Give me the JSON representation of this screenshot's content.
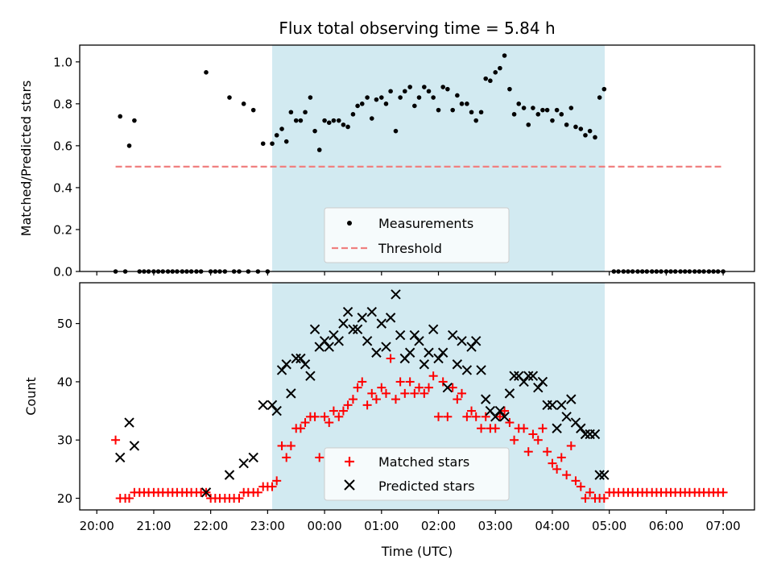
{
  "chart_data": {
    "title": "Flux total observing time = 5.84 h",
    "colors": {
      "shade": "#add8e6",
      "measure": "#000000",
      "threshold": "#f08080",
      "matched": "#ff0000",
      "predicted": "#000000"
    },
    "shade_range_h": [
      23.08,
      28.92
    ],
    "x_axis": {
      "label": "Time (UTC)",
      "range_h": [
        19.7,
        31.55
      ],
      "ticks": [
        {
          "h": 20,
          "label": "20:00"
        },
        {
          "h": 21,
          "label": "21:00"
        },
        {
          "h": 22,
          "label": "22:00"
        },
        {
          "h": 23,
          "label": "23:00"
        },
        {
          "h": 24,
          "label": "00:00"
        },
        {
          "h": 25,
          "label": "01:00"
        },
        {
          "h": 26,
          "label": "02:00"
        },
        {
          "h": 27,
          "label": "03:00"
        },
        {
          "h": 28,
          "label": "04:00"
        },
        {
          "h": 29,
          "label": "05:00"
        },
        {
          "h": 30,
          "label": "06:00"
        },
        {
          "h": 31,
          "label": "07:00"
        }
      ]
    },
    "ratio_panel": {
      "type": "scatter",
      "ylabel": "Matched/Predicted stars",
      "ylim": [
        0,
        1.08
      ],
      "yticks": [
        {
          "v": 0.0,
          "label": "0.0"
        },
        {
          "v": 0.2,
          "label": "0.2"
        },
        {
          "v": 0.4,
          "label": "0.4"
        },
        {
          "v": 0.6,
          "label": "0.6"
        },
        {
          "v": 0.8,
          "label": "0.8"
        },
        {
          "v": 1.0,
          "label": "1.0"
        }
      ],
      "threshold": {
        "value": 0.5,
        "x_range_h": [
          20.33,
          31.0
        ]
      },
      "legend": {
        "measurements": "Measurements",
        "threshold": "Threshold"
      },
      "measurements": [
        [
          20.33,
          0
        ],
        [
          20.41,
          0.74
        ],
        [
          20.5,
          0
        ],
        [
          20.57,
          0.6
        ],
        [
          20.66,
          0.72
        ],
        [
          20.75,
          0
        ],
        [
          20.83,
          0
        ],
        [
          20.91,
          0
        ],
        [
          21.0,
          0
        ],
        [
          21.08,
          0
        ],
        [
          21.16,
          0
        ],
        [
          21.25,
          0
        ],
        [
          21.33,
          0
        ],
        [
          21.41,
          0
        ],
        [
          21.5,
          0
        ],
        [
          21.58,
          0
        ],
        [
          21.66,
          0
        ],
        [
          21.75,
          0
        ],
        [
          21.83,
          0
        ],
        [
          21.92,
          0.95
        ],
        [
          22.0,
          0
        ],
        [
          22.08,
          0
        ],
        [
          22.16,
          0
        ],
        [
          22.25,
          0
        ],
        [
          22.33,
          0.83
        ],
        [
          22.41,
          0
        ],
        [
          22.5,
          0
        ],
        [
          22.58,
          0.8
        ],
        [
          22.66,
          0
        ],
        [
          22.75,
          0.77
        ],
        [
          22.83,
          0
        ],
        [
          22.92,
          0.61
        ],
        [
          23.0,
          0
        ],
        [
          23.08,
          0.61
        ],
        [
          23.16,
          0.65
        ],
        [
          23.25,
          0.68
        ],
        [
          23.33,
          0.62
        ],
        [
          23.41,
          0.76
        ],
        [
          23.5,
          0.72
        ],
        [
          23.58,
          0.72
        ],
        [
          23.66,
          0.76
        ],
        [
          23.75,
          0.83
        ],
        [
          23.83,
          0.67
        ],
        [
          23.91,
          0.58
        ],
        [
          24.0,
          0.72
        ],
        [
          24.08,
          0.71
        ],
        [
          24.16,
          0.72
        ],
        [
          24.25,
          0.72
        ],
        [
          24.33,
          0.7
        ],
        [
          24.41,
          0.69
        ],
        [
          24.5,
          0.75
        ],
        [
          24.58,
          0.79
        ],
        [
          24.66,
          0.8
        ],
        [
          24.75,
          0.83
        ],
        [
          24.83,
          0.73
        ],
        [
          24.91,
          0.82
        ],
        [
          25.0,
          0.83
        ],
        [
          25.08,
          0.8
        ],
        [
          25.16,
          0.86
        ],
        [
          25.25,
          0.67
        ],
        [
          25.33,
          0.83
        ],
        [
          25.41,
          0.86
        ],
        [
          25.5,
          0.88
        ],
        [
          25.58,
          0.79
        ],
        [
          25.66,
          0.83
        ],
        [
          25.75,
          0.88
        ],
        [
          25.83,
          0.86
        ],
        [
          25.91,
          0.83
        ],
        [
          26.0,
          0.77
        ],
        [
          26.08,
          0.88
        ],
        [
          26.16,
          0.87
        ],
        [
          26.25,
          0.77
        ],
        [
          26.33,
          0.84
        ],
        [
          26.41,
          0.8
        ],
        [
          26.5,
          0.8
        ],
        [
          26.58,
          0.76
        ],
        [
          26.66,
          0.72
        ],
        [
          26.75,
          0.76
        ],
        [
          26.83,
          0.92
        ],
        [
          26.91,
          0.91
        ],
        [
          27.0,
          0.95
        ],
        [
          27.08,
          0.97
        ],
        [
          27.16,
          1.03
        ],
        [
          27.25,
          0.87
        ],
        [
          27.33,
          0.75
        ],
        [
          27.41,
          0.8
        ],
        [
          27.5,
          0.78
        ],
        [
          27.58,
          0.7
        ],
        [
          27.66,
          0.78
        ],
        [
          27.75,
          0.75
        ],
        [
          27.83,
          0.77
        ],
        [
          27.91,
          0.77
        ],
        [
          28.0,
          0.72
        ],
        [
          28.08,
          0.77
        ],
        [
          28.16,
          0.75
        ],
        [
          28.25,
          0.7
        ],
        [
          28.33,
          0.78
        ],
        [
          28.41,
          0.69
        ],
        [
          28.5,
          0.68
        ],
        [
          28.58,
          0.65
        ],
        [
          28.66,
          0.67
        ],
        [
          28.75,
          0.64
        ],
        [
          28.83,
          0.83
        ],
        [
          28.91,
          0.87
        ],
        [
          29.08,
          0
        ],
        [
          29.16,
          0
        ],
        [
          29.25,
          0
        ],
        [
          29.33,
          0
        ],
        [
          29.41,
          0
        ],
        [
          29.5,
          0
        ],
        [
          29.58,
          0
        ],
        [
          29.66,
          0
        ],
        [
          29.75,
          0
        ],
        [
          29.83,
          0
        ],
        [
          29.91,
          0
        ],
        [
          30.0,
          0
        ],
        [
          30.08,
          0
        ],
        [
          30.16,
          0
        ],
        [
          30.25,
          0
        ],
        [
          30.33,
          0
        ],
        [
          30.41,
          0
        ],
        [
          30.5,
          0
        ],
        [
          30.58,
          0
        ],
        [
          30.66,
          0
        ],
        [
          30.75,
          0
        ],
        [
          30.83,
          0
        ],
        [
          30.91,
          0
        ],
        [
          31.0,
          0
        ]
      ]
    },
    "count_panel": {
      "type": "scatter",
      "ylabel": "Count",
      "ylim": [
        18,
        57
      ],
      "yticks": [
        {
          "v": 20,
          "label": "20"
        },
        {
          "v": 30,
          "label": "30"
        },
        {
          "v": 40,
          "label": "40"
        },
        {
          "v": 50,
          "label": "50"
        }
      ],
      "legend": {
        "matched": "Matched stars",
        "predicted": "Predicted stars"
      },
      "matched": [
        [
          20.33,
          30
        ],
        [
          20.41,
          20
        ],
        [
          20.5,
          20
        ],
        [
          20.57,
          20
        ],
        [
          20.66,
          21
        ],
        [
          20.75,
          21
        ],
        [
          20.83,
          21
        ],
        [
          20.91,
          21
        ],
        [
          21.0,
          21
        ],
        [
          21.08,
          21
        ],
        [
          21.16,
          21
        ],
        [
          21.25,
          21
        ],
        [
          21.33,
          21
        ],
        [
          21.41,
          21
        ],
        [
          21.5,
          21
        ],
        [
          21.58,
          21
        ],
        [
          21.66,
          21
        ],
        [
          21.75,
          21
        ],
        [
          21.83,
          21
        ],
        [
          21.92,
          21
        ],
        [
          22.0,
          20
        ],
        [
          22.08,
          20
        ],
        [
          22.16,
          20
        ],
        [
          22.25,
          20
        ],
        [
          22.33,
          20
        ],
        [
          22.41,
          20
        ],
        [
          22.5,
          20
        ],
        [
          22.58,
          21
        ],
        [
          22.66,
          21
        ],
        [
          22.75,
          21
        ],
        [
          22.83,
          21
        ],
        [
          22.92,
          22
        ],
        [
          23.0,
          22
        ],
        [
          23.08,
          22
        ],
        [
          23.16,
          23
        ],
        [
          23.25,
          29
        ],
        [
          23.33,
          27
        ],
        [
          23.41,
          29
        ],
        [
          23.5,
          32
        ],
        [
          23.58,
          32
        ],
        [
          23.66,
          33
        ],
        [
          23.75,
          34
        ],
        [
          23.83,
          34
        ],
        [
          23.91,
          27
        ],
        [
          24.0,
          34
        ],
        [
          24.08,
          33
        ],
        [
          24.16,
          35
        ],
        [
          24.25,
          34
        ],
        [
          24.33,
          35
        ],
        [
          24.41,
          36
        ],
        [
          24.5,
          37
        ],
        [
          24.58,
          39
        ],
        [
          24.66,
          40
        ],
        [
          24.75,
          36
        ],
        [
          24.83,
          38
        ],
        [
          24.91,
          37
        ],
        [
          25.0,
          39
        ],
        [
          25.08,
          38
        ],
        [
          25.16,
          44
        ],
        [
          25.25,
          37
        ],
        [
          25.33,
          40
        ],
        [
          25.41,
          38
        ],
        [
          25.5,
          40
        ],
        [
          25.58,
          38
        ],
        [
          25.66,
          39
        ],
        [
          25.75,
          38
        ],
        [
          25.83,
          39
        ],
        [
          25.91,
          41
        ],
        [
          26.0,
          34
        ],
        [
          26.08,
          40
        ],
        [
          26.16,
          34
        ],
        [
          26.25,
          39
        ],
        [
          26.33,
          37
        ],
        [
          26.41,
          38
        ],
        [
          26.5,
          34
        ],
        [
          26.58,
          35
        ],
        [
          26.66,
          34
        ],
        [
          26.75,
          32
        ],
        [
          26.83,
          34
        ],
        [
          26.91,
          32
        ],
        [
          27.0,
          32
        ],
        [
          27.08,
          34
        ],
        [
          27.16,
          35
        ],
        [
          27.25,
          33
        ],
        [
          27.33,
          30
        ],
        [
          27.41,
          32
        ],
        [
          27.5,
          32
        ],
        [
          27.58,
          28
        ],
        [
          27.66,
          31
        ],
        [
          27.75,
          30
        ],
        [
          27.83,
          32
        ],
        [
          27.91,
          28
        ],
        [
          28.0,
          26
        ],
        [
          28.08,
          25
        ],
        [
          28.16,
          27
        ],
        [
          28.25,
          24
        ],
        [
          28.33,
          29
        ],
        [
          28.41,
          23
        ],
        [
          28.5,
          22
        ],
        [
          28.58,
          20
        ],
        [
          28.66,
          21
        ],
        [
          28.75,
          20
        ],
        [
          28.83,
          20
        ],
        [
          28.91,
          20
        ],
        [
          29.0,
          21
        ],
        [
          29.08,
          21
        ],
        [
          29.16,
          21
        ],
        [
          29.25,
          21
        ],
        [
          29.33,
          21
        ],
        [
          29.41,
          21
        ],
        [
          29.5,
          21
        ],
        [
          29.58,
          21
        ],
        [
          29.66,
          21
        ],
        [
          29.75,
          21
        ],
        [
          29.83,
          21
        ],
        [
          29.91,
          21
        ],
        [
          30.0,
          21
        ],
        [
          30.08,
          21
        ],
        [
          30.16,
          21
        ],
        [
          30.25,
          21
        ],
        [
          30.33,
          21
        ],
        [
          30.41,
          21
        ],
        [
          30.5,
          21
        ],
        [
          30.58,
          21
        ],
        [
          30.66,
          21
        ],
        [
          30.75,
          21
        ],
        [
          30.83,
          21
        ],
        [
          30.91,
          21
        ],
        [
          31.0,
          21
        ]
      ],
      "predicted": [
        [
          20.41,
          27
        ],
        [
          20.57,
          33
        ],
        [
          20.66,
          29
        ],
        [
          21.92,
          21
        ],
        [
          22.33,
          24
        ],
        [
          22.58,
          26
        ],
        [
          22.75,
          27
        ],
        [
          22.92,
          36
        ],
        [
          23.08,
          36
        ],
        [
          23.16,
          35
        ],
        [
          23.25,
          42
        ],
        [
          23.33,
          43
        ],
        [
          23.41,
          38
        ],
        [
          23.5,
          44
        ],
        [
          23.58,
          44
        ],
        [
          23.66,
          43
        ],
        [
          23.75,
          41
        ],
        [
          23.83,
          49
        ],
        [
          23.91,
          46
        ],
        [
          24.0,
          47
        ],
        [
          24.08,
          46
        ],
        [
          24.16,
          48
        ],
        [
          24.25,
          47
        ],
        [
          24.33,
          50
        ],
        [
          24.41,
          52
        ],
        [
          24.5,
          49
        ],
        [
          24.58,
          49
        ],
        [
          24.66,
          51
        ],
        [
          24.75,
          47
        ],
        [
          24.83,
          52
        ],
        [
          24.91,
          45
        ],
        [
          25.0,
          50
        ],
        [
          25.08,
          46
        ],
        [
          25.16,
          51
        ],
        [
          25.25,
          55
        ],
        [
          25.33,
          48
        ],
        [
          25.41,
          44
        ],
        [
          25.5,
          45
        ],
        [
          25.58,
          48
        ],
        [
          25.66,
          47
        ],
        [
          25.75,
          43
        ],
        [
          25.83,
          45
        ],
        [
          25.91,
          49
        ],
        [
          26.0,
          44
        ],
        [
          26.08,
          45
        ],
        [
          26.16,
          39
        ],
        [
          26.25,
          48
        ],
        [
          26.33,
          43
        ],
        [
          26.41,
          47
        ],
        [
          26.5,
          42
        ],
        [
          26.58,
          46
        ],
        [
          26.66,
          47
        ],
        [
          26.75,
          42
        ],
        [
          26.83,
          37
        ],
        [
          26.91,
          35
        ],
        [
          27.0,
          34
        ],
        [
          27.08,
          35
        ],
        [
          27.16,
          34
        ],
        [
          27.25,
          38
        ],
        [
          27.33,
          41
        ],
        [
          27.41,
          41
        ],
        [
          27.5,
          40
        ],
        [
          27.58,
          41
        ],
        [
          27.66,
          41
        ],
        [
          27.75,
          39
        ],
        [
          27.83,
          40
        ],
        [
          27.91,
          36
        ],
        [
          28.0,
          36
        ],
        [
          28.08,
          32
        ],
        [
          28.16,
          36
        ],
        [
          28.25,
          34
        ],
        [
          28.33,
          37
        ],
        [
          28.41,
          33
        ],
        [
          28.5,
          32
        ],
        [
          28.58,
          31
        ],
        [
          28.66,
          31
        ],
        [
          28.75,
          31
        ],
        [
          28.83,
          24
        ],
        [
          28.91,
          24
        ]
      ]
    }
  }
}
